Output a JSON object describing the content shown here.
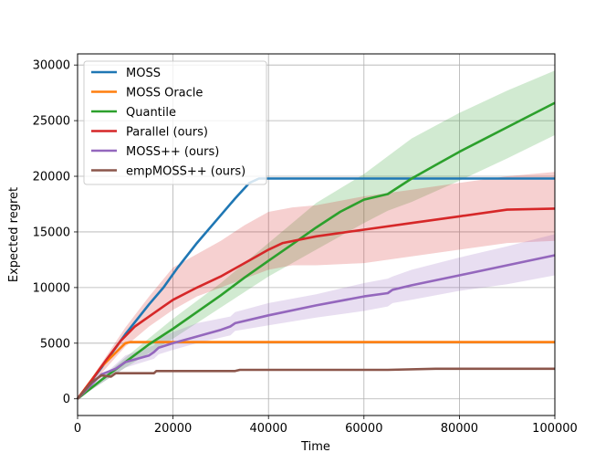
{
  "chart_data": {
    "type": "line",
    "title": "",
    "xlabel": "Time",
    "ylabel": "Expected regret",
    "xlim": [
      0,
      100000
    ],
    "ylim": [
      -1500,
      31000
    ],
    "xticks": [
      0,
      20000,
      40000,
      60000,
      80000,
      100000
    ],
    "yticks": [
      0,
      5000,
      10000,
      15000,
      20000,
      25000,
      30000
    ],
    "grid": true,
    "legend_position": "top-left",
    "series": [
      {
        "name": "MOSS",
        "color": "#1f77b4",
        "points": [
          [
            0,
            0
          ],
          [
            5000,
            2800
          ],
          [
            10000,
            5800
          ],
          [
            15000,
            8500
          ],
          [
            18000,
            10000
          ],
          [
            21000,
            11800
          ],
          [
            25000,
            14000
          ],
          [
            30000,
            16500
          ],
          [
            33000,
            18000
          ],
          [
            36000,
            19400
          ],
          [
            38000,
            19800
          ],
          [
            40000,
            19800
          ],
          [
            60000,
            19800
          ],
          [
            80000,
            19800
          ],
          [
            100000,
            19800
          ]
        ]
      },
      {
        "name": "MOSS Oracle",
        "color": "#ff7f0e",
        "points": [
          [
            0,
            0
          ],
          [
            5000,
            2900
          ],
          [
            10000,
            5000
          ],
          [
            11000,
            5100
          ],
          [
            20000,
            5100
          ],
          [
            40000,
            5100
          ],
          [
            60000,
            5100
          ],
          [
            80000,
            5100
          ],
          [
            100000,
            5100
          ]
        ]
      },
      {
        "name": "Quantile",
        "color": "#2ca02c",
        "band": [
          [
            0,
            0,
            0
          ],
          [
            10000,
            2800,
            3700
          ],
          [
            20000,
            5400,
            7200
          ],
          [
            30000,
            8200,
            10400
          ],
          [
            40000,
            11000,
            14000
          ],
          [
            50000,
            13400,
            17600
          ],
          [
            60000,
            15800,
            20200
          ],
          [
            65000,
            16900,
            21800
          ],
          [
            70000,
            17700,
            23400
          ],
          [
            80000,
            19600,
            25700
          ],
          [
            90000,
            21600,
            27700
          ],
          [
            100000,
            23700,
            29500
          ]
        ],
        "points": [
          [
            0,
            0
          ],
          [
            5000,
            1700
          ],
          [
            10000,
            3300
          ],
          [
            15000,
            4900
          ],
          [
            20000,
            6300
          ],
          [
            25000,
            7800
          ],
          [
            30000,
            9300
          ],
          [
            35000,
            10900
          ],
          [
            40000,
            12400
          ],
          [
            45000,
            13900
          ],
          [
            50000,
            15400
          ],
          [
            55000,
            16800
          ],
          [
            60000,
            17900
          ],
          [
            65000,
            18400
          ],
          [
            70000,
            19800
          ],
          [
            75000,
            21000
          ],
          [
            80000,
            22200
          ],
          [
            85000,
            23300
          ],
          [
            90000,
            24400
          ],
          [
            95000,
            25500
          ],
          [
            100000,
            26600
          ]
        ]
      },
      {
        "name": "Parallel (ours)",
        "color": "#d62728",
        "band": [
          [
            0,
            0,
            0
          ],
          [
            5000,
            2300,
            3200
          ],
          [
            10000,
            4700,
            6400
          ],
          [
            15000,
            6500,
            9200
          ],
          [
            20000,
            8000,
            11800
          ],
          [
            25000,
            9200,
            13000
          ],
          [
            30000,
            10000,
            14200
          ],
          [
            35000,
            10800,
            15600
          ],
          [
            40000,
            11600,
            16800
          ],
          [
            45000,
            12000,
            17200
          ],
          [
            50000,
            12000,
            17400
          ],
          [
            60000,
            12200,
            18200
          ],
          [
            70000,
            12800,
            18800
          ],
          [
            80000,
            13400,
            19400
          ],
          [
            90000,
            14000,
            20000
          ],
          [
            100000,
            14200,
            20400
          ]
        ],
        "points": [
          [
            0,
            0
          ],
          [
            3000,
            1700
          ],
          [
            6000,
            3500
          ],
          [
            9000,
            5200
          ],
          [
            12000,
            6500
          ],
          [
            15000,
            7400
          ],
          [
            18000,
            8300
          ],
          [
            20000,
            8900
          ],
          [
            25000,
            10000
          ],
          [
            30000,
            11000
          ],
          [
            35000,
            12200
          ],
          [
            40000,
            13400
          ],
          [
            43000,
            14000
          ],
          [
            50000,
            14600
          ],
          [
            60000,
            15200
          ],
          [
            70000,
            15800
          ],
          [
            80000,
            16400
          ],
          [
            90000,
            17000
          ],
          [
            100000,
            17100
          ]
        ]
      },
      {
        "name": "MOSS++ (ours)",
        "color": "#9467bd",
        "band": [
          [
            0,
            0,
            0
          ],
          [
            10000,
            2800,
            3900
          ],
          [
            16000,
            3600,
            4800
          ],
          [
            17000,
            4000,
            5400
          ],
          [
            20000,
            4400,
            6000
          ],
          [
            25000,
            5000,
            6800
          ],
          [
            32000,
            5700,
            7400
          ],
          [
            33000,
            6100,
            7800
          ],
          [
            40000,
            6600,
            8600
          ],
          [
            50000,
            7300,
            9400
          ],
          [
            60000,
            7900,
            10400
          ],
          [
            65000,
            8300,
            10800
          ],
          [
            66000,
            8600,
            11000
          ],
          [
            70000,
            8900,
            11600
          ],
          [
            80000,
            9700,
            12700
          ],
          [
            90000,
            10300,
            13700
          ],
          [
            100000,
            11100,
            14800
          ]
        ],
        "points": [
          [
            0,
            0
          ],
          [
            5000,
            2200
          ],
          [
            8000,
            2700
          ],
          [
            10000,
            3300
          ],
          [
            15000,
            3900
          ],
          [
            16000,
            4200
          ],
          [
            17000,
            4600
          ],
          [
            20000,
            5000
          ],
          [
            25000,
            5600
          ],
          [
            30000,
            6200
          ],
          [
            32000,
            6500
          ],
          [
            33000,
            6800
          ],
          [
            40000,
            7500
          ],
          [
            50000,
            8400
          ],
          [
            60000,
            9200
          ],
          [
            65000,
            9500
          ],
          [
            66000,
            9800
          ],
          [
            70000,
            10200
          ],
          [
            80000,
            11100
          ],
          [
            90000,
            12000
          ],
          [
            100000,
            12900
          ]
        ]
      },
      {
        "name": "empMOSS++ (ours)",
        "color": "#8c564b",
        "points": [
          [
            0,
            0
          ],
          [
            3000,
            1500
          ],
          [
            5000,
            2100
          ],
          [
            7000,
            2000
          ],
          [
            8000,
            2300
          ],
          [
            16000,
            2300
          ],
          [
            16500,
            2500
          ],
          [
            20000,
            2500
          ],
          [
            33000,
            2500
          ],
          [
            34000,
            2600
          ],
          [
            60000,
            2600
          ],
          [
            65000,
            2600
          ],
          [
            75000,
            2700
          ],
          [
            100000,
            2700
          ]
        ]
      }
    ]
  }
}
